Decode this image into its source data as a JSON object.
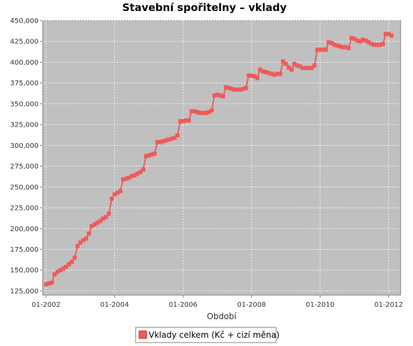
{
  "chart_data": {
    "type": "line",
    "title": "Stavební spořitelny  – vklady",
    "xlabel": "Období",
    "ylabel": "",
    "xlim": [
      "2002-01",
      "2012-03"
    ],
    "ylim": [
      120000,
      450000
    ],
    "y_ticks": [
      125000,
      150000,
      175000,
      200000,
      225000,
      250000,
      275000,
      300000,
      325000,
      350000,
      375000,
      400000,
      425000,
      450000
    ],
    "y_tick_labels": [
      "125,000",
      "150,000",
      "175,000",
      "200,000",
      "225,000",
      "250,000",
      "275,000",
      "300,000",
      "325,000",
      "350,000",
      "375,000",
      "400,000",
      "425,000",
      "450,000"
    ],
    "x_ticks": [
      "2002-01",
      "2004-01",
      "2006-01",
      "2008-01",
      "2010-01",
      "2012-01"
    ],
    "x_tick_labels": [
      "01-2002",
      "01-2004",
      "01-2006",
      "01-2008",
      "01-2010",
      "01-2012"
    ],
    "grid": true,
    "legend": "bottom",
    "background": "#c0c0c0",
    "series": [
      {
        "name": "Vklady celkem (Kč + cizí měna)",
        "color": "#f05a5a",
        "x": [
          "2002-01",
          "2002-02",
          "2002-03",
          "2002-04",
          "2002-05",
          "2002-06",
          "2002-07",
          "2002-08",
          "2002-09",
          "2002-10",
          "2002-11",
          "2002-12",
          "2003-01",
          "2003-02",
          "2003-03",
          "2003-04",
          "2003-05",
          "2003-06",
          "2003-07",
          "2003-08",
          "2003-09",
          "2003-10",
          "2003-11",
          "2003-12",
          "2004-01",
          "2004-02",
          "2004-03",
          "2004-04",
          "2004-05",
          "2004-06",
          "2004-07",
          "2004-08",
          "2004-09",
          "2004-10",
          "2004-11",
          "2004-12",
          "2005-01",
          "2005-02",
          "2005-03",
          "2005-04",
          "2005-05",
          "2005-06",
          "2005-07",
          "2005-08",
          "2005-09",
          "2005-10",
          "2005-11",
          "2005-12",
          "2006-01",
          "2006-02",
          "2006-03",
          "2006-04",
          "2006-05",
          "2006-06",
          "2006-07",
          "2006-08",
          "2006-09",
          "2006-10",
          "2006-11",
          "2006-12",
          "2007-01",
          "2007-02",
          "2007-03",
          "2007-04",
          "2007-05",
          "2007-06",
          "2007-07",
          "2007-08",
          "2007-09",
          "2007-10",
          "2007-11",
          "2007-12",
          "2008-01",
          "2008-02",
          "2008-03",
          "2008-04",
          "2008-05",
          "2008-06",
          "2008-07",
          "2008-08",
          "2008-09",
          "2008-10",
          "2008-11",
          "2008-12",
          "2009-01",
          "2009-02",
          "2009-03",
          "2009-04",
          "2009-05",
          "2009-06",
          "2009-07",
          "2009-08",
          "2009-09",
          "2009-10",
          "2009-11",
          "2009-12",
          "2010-01",
          "2010-02",
          "2010-03",
          "2010-04",
          "2010-05",
          "2010-06",
          "2010-07",
          "2010-08",
          "2010-09",
          "2010-10",
          "2010-11",
          "2010-12",
          "2011-01",
          "2011-02",
          "2011-03",
          "2011-04",
          "2011-05",
          "2011-06",
          "2011-07",
          "2011-08",
          "2011-09",
          "2011-10",
          "2011-11",
          "2011-12",
          "2012-01",
          "2012-02"
        ],
        "values": [
          133000,
          134000,
          135000,
          145000,
          148000,
          150000,
          152000,
          154000,
          157000,
          160000,
          165000,
          179000,
          183000,
          186000,
          188000,
          194000,
          203000,
          205000,
          207000,
          209000,
          212000,
          214000,
          218000,
          236000,
          241000,
          243000,
          245000,
          259000,
          260000,
          261000,
          263000,
          264000,
          266000,
          268000,
          271000,
          287000,
          288000,
          289000,
          290000,
          304000,
          304000,
          305000,
          306000,
          307000,
          308000,
          309000,
          312000,
          329000,
          329000,
          330000,
          330000,
          341000,
          341000,
          340000,
          339000,
          339000,
          339000,
          340000,
          342000,
          360000,
          361000,
          360000,
          359000,
          370000,
          369000,
          368000,
          367000,
          367000,
          367000,
          368000,
          369000,
          384000,
          384000,
          383000,
          381000,
          391000,
          389000,
          388000,
          387000,
          386000,
          385000,
          386000,
          386000,
          401000,
          398000,
          394000,
          391000,
          398000,
          396000,
          395000,
          393000,
          393000,
          393000,
          393000,
          396000,
          415000,
          415000,
          415000,
          415000,
          424000,
          423000,
          421000,
          420000,
          419000,
          418000,
          418000,
          417000,
          429000,
          428000,
          426000,
          425000,
          427000,
          426000,
          424000,
          422000,
          421000,
          421000,
          421000,
          422000,
          434000,
          434000,
          432000
        ]
      }
    ]
  }
}
